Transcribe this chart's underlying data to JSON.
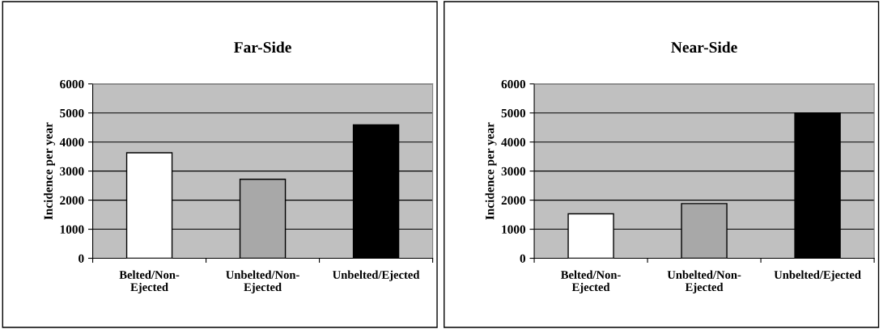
{
  "chart_data": [
    {
      "type": "bar",
      "title": "Far-Side",
      "ylabel": "Incidence per year",
      "categories": [
        "Belted/Non-\nEjected",
        "Unbelted/Non-\nEjected",
        "Unbelted/Ejected"
      ],
      "values": [
        3630,
        2720,
        4590
      ],
      "colors": [
        "#ffffff",
        "#a8a8a8",
        "#000000"
      ],
      "ylim": [
        0,
        6000
      ],
      "yticks": [
        0,
        1000,
        2000,
        3000,
        4000,
        5000,
        6000
      ],
      "grid": "y"
    },
    {
      "type": "bar",
      "title": "Near-Side",
      "ylabel": "Incidence per year",
      "categories": [
        "Belted/Non-\nEjected",
        "Unbelted/Non-\nEjected",
        "Unbelted/Ejected"
      ],
      "values": [
        1530,
        1880,
        5000
      ],
      "colors": [
        "#ffffff",
        "#a8a8a8",
        "#000000"
      ],
      "ylim": [
        0,
        6000
      ],
      "yticks": [
        0,
        1000,
        2000,
        3000,
        4000,
        5000,
        6000
      ],
      "grid": "y"
    }
  ]
}
